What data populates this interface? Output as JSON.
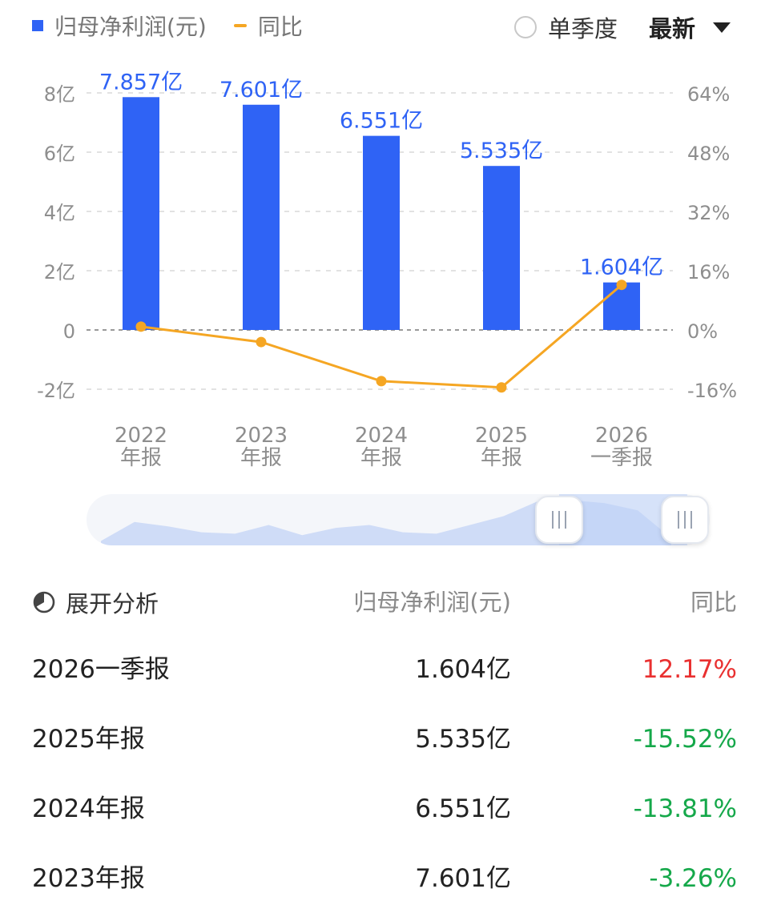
{
  "legend": {
    "bar_label": "归母净利润(元)",
    "line_label": "同比"
  },
  "toggle": {
    "label": "单季度",
    "checked": false
  },
  "select": {
    "value": "最新"
  },
  "chart_data": {
    "type": "bar",
    "categories": [
      [
        "2022",
        "年报"
      ],
      [
        "2023",
        "年报"
      ],
      [
        "2024",
        "年报"
      ],
      [
        "2025",
        "年报"
      ],
      [
        "2026",
        "一季报"
      ]
    ],
    "series": [
      {
        "name": "归母净利润(元)",
        "type": "bar",
        "axis": "left",
        "values": [
          7.857,
          7.601,
          6.551,
          5.535,
          1.604
        ],
        "labels": [
          "7.857亿",
          "7.601亿",
          "6.551亿",
          "5.535亿",
          "1.604亿"
        ],
        "color": "#2f63f5"
      },
      {
        "name": "同比",
        "type": "line",
        "axis": "right",
        "values": [
          0.9,
          -3.26,
          -13.81,
          -15.52,
          12.17
        ],
        "color": "#f5a623"
      }
    ],
    "y_left": {
      "ticks": [
        8,
        6,
        4,
        2,
        0,
        -2
      ],
      "tick_labels": [
        "8亿",
        "6亿",
        "4亿",
        "2亿",
        "0",
        "-2亿"
      ],
      "range": [
        -2,
        8
      ]
    },
    "y_right": {
      "ticks": [
        64,
        48,
        32,
        16,
        0,
        -16
      ],
      "tick_labels": [
        "64%",
        "48%",
        "32%",
        "16%",
        "0%",
        "-16%"
      ],
      "range": [
        -16,
        64
      ]
    },
    "grid": true
  },
  "slider": {
    "overview_values": [
      3,
      16,
      13,
      9,
      8,
      14,
      7,
      12,
      14,
      9,
      8,
      14,
      20,
      30,
      31,
      29,
      24,
      5
    ]
  },
  "table": {
    "expand_label": "展开分析",
    "headers": [
      "归母净利润(元)",
      "同比"
    ],
    "rows": [
      {
        "period": "2026一季报",
        "value": "1.604亿",
        "yoy": "12.17%",
        "trend": "up"
      },
      {
        "period": "2025年报",
        "value": "5.535亿",
        "yoy": "-15.52%",
        "trend": "down"
      },
      {
        "period": "2024年报",
        "value": "6.551亿",
        "yoy": "-13.81%",
        "trend": "down"
      },
      {
        "period": "2023年报",
        "value": "7.601亿",
        "yoy": "-3.26%",
        "trend": "down"
      }
    ]
  }
}
